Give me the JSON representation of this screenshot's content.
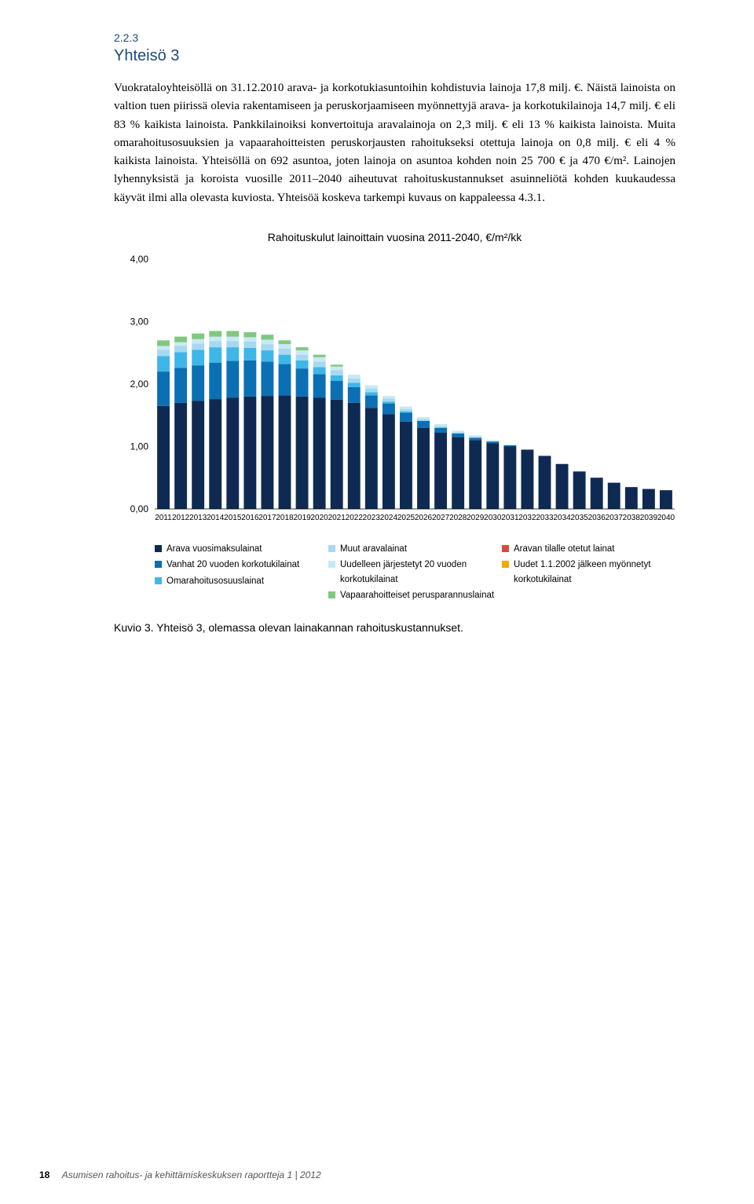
{
  "section_number": "2.2.3",
  "section_title": "Yhteisö 3",
  "paragraph": "Vuokrataloyhteisöllä on 31.12.2010 arava- ja korkotukiasuntoihin kohdistuvia lainoja 17,8 milj. €. Näistä lainoista on valtion tuen piirissä olevia rakentamiseen ja peruskorjaamiseen myönnettyjä arava- ja korkotukilainoja 14,7 milj. € eli 83 % kaikista lainoista. Pankkilainoiksi konvertoituja aravalainoja on 2,3 milj. € eli 13 % kaikista lainoista. Muita omarahoitusosuuksien ja vapaarahoitteisten peruskorjausten rahoitukseksi otettuja lainoja on 0,8 milj. € eli 4 % kaikista lainoista. Yhteisöllä on 692 asuntoa, joten lainoja on asuntoa kohden noin 25 700 € ja 470 €/m². Lainojen lyhennyksistä ja koroista vuosille 2011–2040 aiheutuvat rahoituskustannukset asuinneliötä kohden kuukaudessa käyvät ilmi alla olevasta kuviosta. Yhteisöä koskeva tarkempi kuvaus on kappaleessa 4.3.1.",
  "chart": {
    "type": "stacked-bar",
    "title": "Rahoituskulut lainoittain vuosina 2011-2040, €/m²/kk",
    "ylabel_fontsize": 12,
    "title_fontsize": 14,
    "background_color": "#ffffff",
    "ylim": [
      0,
      4.0
    ],
    "ytick_step": 1.0,
    "yticks": [
      "0,00",
      "1,00",
      "2,00",
      "3,00",
      "4,00"
    ],
    "bar_width": 0.72,
    "xlabels": [
      "2011",
      "2012",
      "2013",
      "2014",
      "2015",
      "2016",
      "2017",
      "2018",
      "2019",
      "2020",
      "2021",
      "2022",
      "2023",
      "2024",
      "2025",
      "2026",
      "2027",
      "2028",
      "2029",
      "2030",
      "2031",
      "2032",
      "2033",
      "2034",
      "2035",
      "2036",
      "2037",
      "2038",
      "2039",
      "2040"
    ],
    "series": [
      {
        "key": "arava_vuosi",
        "label": "Arava vuosimaksulainat",
        "color": "#0f2a52"
      },
      {
        "key": "vanhat20",
        "label": "Vanhat 20 vuoden korkotukilainat",
        "color": "#0b6fb3"
      },
      {
        "key": "omarahoitus",
        "label": "Omarahoitusosuuslainat",
        "color": "#3fb6e8"
      },
      {
        "key": "muut_arava",
        "label": "Muut aravalainat",
        "color": "#a6d9ef"
      },
      {
        "key": "uudelleen",
        "label": "Uudelleen järjestetyt 20 vuoden korkotukilainat",
        "color": "#c9e8f5"
      },
      {
        "key": "vapaaraho",
        "label": "Vapaarahoitteiset perusparannuslainat",
        "color": "#7fc97f"
      },
      {
        "key": "aravan_tilalle",
        "label": "Aravan tilalle otetut lainat",
        "color": "#d94a3a"
      },
      {
        "key": "uudet2002",
        "label": "Uudet 1.1.2002 jälkeen myönnetyt korkotukilainat",
        "color": "#f2a900"
      }
    ],
    "data": [
      {
        "arava_vuosi": 1.65,
        "vanhat20": 0.55,
        "omarahoitus": 0.25,
        "muut_arava": 0.1,
        "uudelleen": 0.06,
        "vapaaraho": 0.09,
        "aravan_tilalle": 0.0,
        "uudet2002": 0.0
      },
      {
        "arava_vuosi": 1.7,
        "vanhat20": 0.56,
        "omarahoitus": 0.25,
        "muut_arava": 0.1,
        "uudelleen": 0.06,
        "vapaaraho": 0.09,
        "aravan_tilalle": 0.0,
        "uudet2002": 0.0
      },
      {
        "arava_vuosi": 1.73,
        "vanhat20": 0.57,
        "omarahoitus": 0.25,
        "muut_arava": 0.1,
        "uudelleen": 0.07,
        "vapaaraho": 0.09,
        "aravan_tilalle": 0.0,
        "uudet2002": 0.0
      },
      {
        "arava_vuosi": 1.76,
        "vanhat20": 0.58,
        "omarahoitus": 0.25,
        "muut_arava": 0.1,
        "uudelleen": 0.07,
        "vapaaraho": 0.09,
        "aravan_tilalle": 0.0,
        "uudet2002": 0.0
      },
      {
        "arava_vuosi": 1.78,
        "vanhat20": 0.59,
        "omarahoitus": 0.22,
        "muut_arava": 0.1,
        "uudelleen": 0.07,
        "vapaaraho": 0.09,
        "aravan_tilalle": 0.0,
        "uudet2002": 0.0
      },
      {
        "arava_vuosi": 1.8,
        "vanhat20": 0.58,
        "omarahoitus": 0.2,
        "muut_arava": 0.1,
        "uudelleen": 0.07,
        "vapaaraho": 0.08,
        "aravan_tilalle": 0.0,
        "uudet2002": 0.0
      },
      {
        "arava_vuosi": 1.81,
        "vanhat20": 0.55,
        "omarahoitus": 0.18,
        "muut_arava": 0.1,
        "uudelleen": 0.07,
        "vapaaraho": 0.08,
        "aravan_tilalle": 0.0,
        "uudet2002": 0.0
      },
      {
        "arava_vuosi": 1.82,
        "vanhat20": 0.5,
        "omarahoitus": 0.15,
        "muut_arava": 0.1,
        "uudelleen": 0.07,
        "vapaaraho": 0.06,
        "aravan_tilalle": 0.0,
        "uudet2002": 0.0
      },
      {
        "arava_vuosi": 1.8,
        "vanhat20": 0.45,
        "omarahoitus": 0.13,
        "muut_arava": 0.09,
        "uudelleen": 0.07,
        "vapaaraho": 0.05,
        "aravan_tilalle": 0.0,
        "uudet2002": 0.0
      },
      {
        "arava_vuosi": 1.78,
        "vanhat20": 0.38,
        "omarahoitus": 0.11,
        "muut_arava": 0.09,
        "uudelleen": 0.07,
        "vapaaraho": 0.04,
        "aravan_tilalle": 0.0,
        "uudet2002": 0.0
      },
      {
        "arava_vuosi": 1.75,
        "vanhat20": 0.3,
        "omarahoitus": 0.09,
        "muut_arava": 0.08,
        "uudelleen": 0.06,
        "vapaaraho": 0.03,
        "aravan_tilalle": 0.0,
        "uudet2002": 0.0
      },
      {
        "arava_vuosi": 1.7,
        "vanhat20": 0.25,
        "omarahoitus": 0.07,
        "muut_arava": 0.07,
        "uudelleen": 0.06,
        "vapaaraho": 0.0,
        "aravan_tilalle": 0.0,
        "uudet2002": 0.0
      },
      {
        "arava_vuosi": 1.62,
        "vanhat20": 0.2,
        "omarahoitus": 0.05,
        "muut_arava": 0.06,
        "uudelleen": 0.05,
        "vapaaraho": 0.0,
        "aravan_tilalle": 0.0,
        "uudet2002": 0.0
      },
      {
        "arava_vuosi": 1.52,
        "vanhat20": 0.17,
        "omarahoitus": 0.03,
        "muut_arava": 0.05,
        "uudelleen": 0.04,
        "vapaaraho": 0.0,
        "aravan_tilalle": 0.0,
        "uudet2002": 0.0
      },
      {
        "arava_vuosi": 1.4,
        "vanhat20": 0.14,
        "omarahoitus": 0.02,
        "muut_arava": 0.04,
        "uudelleen": 0.04,
        "vapaaraho": 0.0,
        "aravan_tilalle": 0.0,
        "uudet2002": 0.0
      },
      {
        "arava_vuosi": 1.3,
        "vanhat20": 0.11,
        "omarahoitus": 0.0,
        "muut_arava": 0.03,
        "uudelleen": 0.03,
        "vapaaraho": 0.0,
        "aravan_tilalle": 0.0,
        "uudet2002": 0.0
      },
      {
        "arava_vuosi": 1.22,
        "vanhat20": 0.08,
        "omarahoitus": 0.0,
        "muut_arava": 0.03,
        "uudelleen": 0.03,
        "vapaaraho": 0.0,
        "aravan_tilalle": 0.0,
        "uudet2002": 0.0
      },
      {
        "arava_vuosi": 1.15,
        "vanhat20": 0.06,
        "omarahoitus": 0.0,
        "muut_arava": 0.02,
        "uudelleen": 0.02,
        "vapaaraho": 0.0,
        "aravan_tilalle": 0.0,
        "uudet2002": 0.0
      },
      {
        "arava_vuosi": 1.1,
        "vanhat20": 0.04,
        "omarahoitus": 0.0,
        "muut_arava": 0.02,
        "uudelleen": 0.02,
        "vapaaraho": 0.0,
        "aravan_tilalle": 0.0,
        "uudet2002": 0.0
      },
      {
        "arava_vuosi": 1.05,
        "vanhat20": 0.03,
        "omarahoitus": 0.0,
        "muut_arava": 0.01,
        "uudelleen": 0.01,
        "vapaaraho": 0.0,
        "aravan_tilalle": 0.0,
        "uudet2002": 0.0
      },
      {
        "arava_vuosi": 1.0,
        "vanhat20": 0.02,
        "omarahoitus": 0.0,
        "muut_arava": 0.0,
        "uudelleen": 0.01,
        "vapaaraho": 0.0,
        "aravan_tilalle": 0.0,
        "uudet2002": 0.0
      },
      {
        "arava_vuosi": 0.95,
        "vanhat20": 0.0,
        "omarahoitus": 0.0,
        "muut_arava": 0.0,
        "uudelleen": 0.0,
        "vapaaraho": 0.0,
        "aravan_tilalle": 0.0,
        "uudet2002": 0.0
      },
      {
        "arava_vuosi": 0.85,
        "vanhat20": 0.0,
        "omarahoitus": 0.0,
        "muut_arava": 0.0,
        "uudelleen": 0.0,
        "vapaaraho": 0.0,
        "aravan_tilalle": 0.0,
        "uudet2002": 0.0
      },
      {
        "arava_vuosi": 0.72,
        "vanhat20": 0.0,
        "omarahoitus": 0.0,
        "muut_arava": 0.0,
        "uudelleen": 0.0,
        "vapaaraho": 0.0,
        "aravan_tilalle": 0.0,
        "uudet2002": 0.0
      },
      {
        "arava_vuosi": 0.6,
        "vanhat20": 0.0,
        "omarahoitus": 0.0,
        "muut_arava": 0.0,
        "uudelleen": 0.0,
        "vapaaraho": 0.0,
        "aravan_tilalle": 0.0,
        "uudet2002": 0.0
      },
      {
        "arava_vuosi": 0.5,
        "vanhat20": 0.0,
        "omarahoitus": 0.0,
        "muut_arava": 0.0,
        "uudelleen": 0.0,
        "vapaaraho": 0.0,
        "aravan_tilalle": 0.0,
        "uudet2002": 0.0
      },
      {
        "arava_vuosi": 0.42,
        "vanhat20": 0.0,
        "omarahoitus": 0.0,
        "muut_arava": 0.0,
        "uudelleen": 0.0,
        "vapaaraho": 0.0,
        "aravan_tilalle": 0.0,
        "uudet2002": 0.0
      },
      {
        "arava_vuosi": 0.35,
        "vanhat20": 0.0,
        "omarahoitus": 0.0,
        "muut_arava": 0.0,
        "uudelleen": 0.0,
        "vapaaraho": 0.0,
        "aravan_tilalle": 0.0,
        "uudet2002": 0.0
      },
      {
        "arava_vuosi": 0.32,
        "vanhat20": 0.0,
        "omarahoitus": 0.0,
        "muut_arava": 0.0,
        "uudelleen": 0.0,
        "vapaaraho": 0.0,
        "aravan_tilalle": 0.0,
        "uudet2002": 0.0
      },
      {
        "arava_vuosi": 0.3,
        "vanhat20": 0.0,
        "omarahoitus": 0.0,
        "muut_arava": 0.0,
        "uudelleen": 0.0,
        "vapaaraho": 0.0,
        "aravan_tilalle": 0.0,
        "uudet2002": 0.0
      }
    ]
  },
  "legend_columns": [
    [
      0,
      1,
      2
    ],
    [
      3,
      4,
      5
    ],
    [
      6,
      7
    ]
  ],
  "caption": "Kuvio 3. Yhteisö 3, olemassa olevan lainakannan rahoituskustannukset.",
  "footer": {
    "page": "18",
    "text": "Asumisen rahoitus- ja kehittämiskeskuksen raportteja  1 | 2012"
  }
}
